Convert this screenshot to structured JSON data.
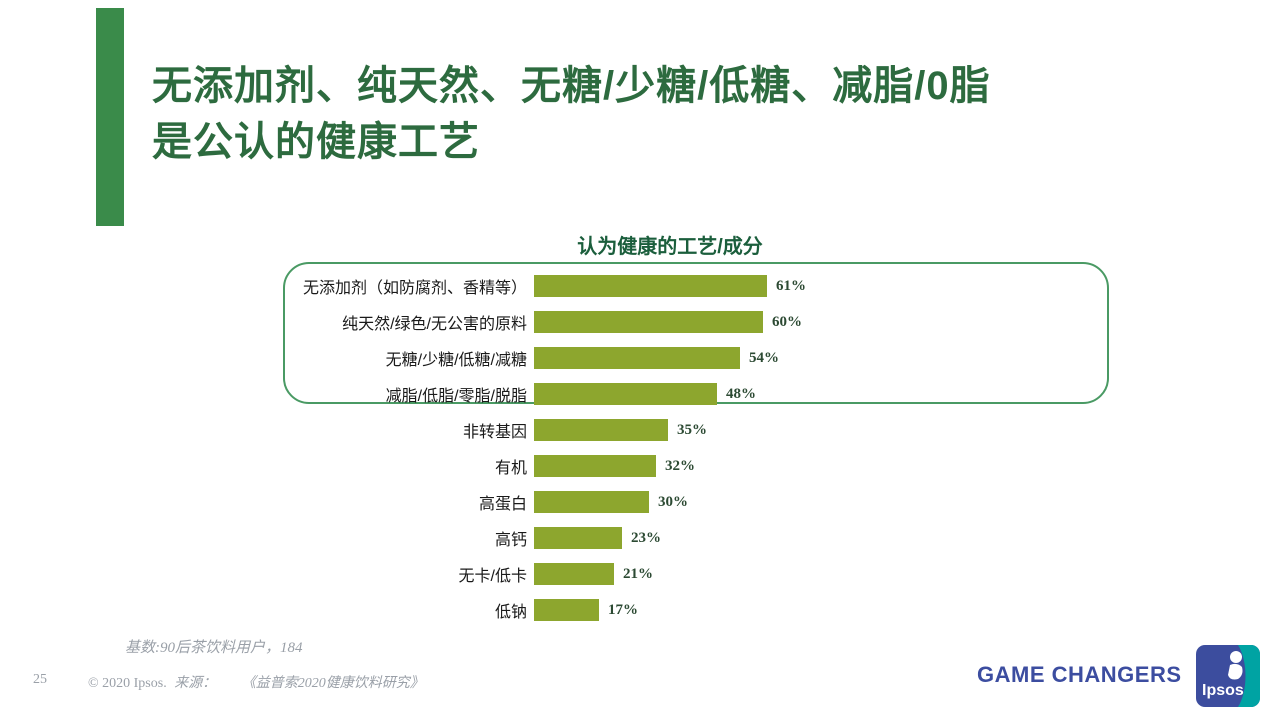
{
  "slide": {
    "title_lines": [
      "无添加剂、纯天然、无糖/少糖/低糖、减脂/0脂",
      "是公认的健康工艺"
    ],
    "accent_color": "#3a8b4a",
    "title_color": "#2d6b3f"
  },
  "chart_data": {
    "type": "bar",
    "orientation": "horizontal",
    "title": "认为健康的工艺/成分",
    "categories": [
      "无添加剂（如防腐剂、香精等）",
      "纯天然/绿色/无公害的原料",
      "无糖/少糖/低糖/减糖",
      "减脂/低脂/零脂/脱脂",
      "非转基因",
      "有机",
      "高蛋白",
      "高钙",
      "无卡/低卡",
      "低钠"
    ],
    "values": [
      61,
      60,
      54,
      48,
      35,
      32,
      30,
      23,
      21,
      17
    ],
    "value_suffix": "%",
    "xlim": [
      0,
      65
    ],
    "grid": false,
    "legend": false,
    "highlighted_top_rows": 4,
    "bar_color": "#8da62e",
    "frame_color": "#4a9a64",
    "title_color": "#1b5e3c",
    "value_label_color": "#2c4a33"
  },
  "footnote": "基数:90后茶饮料用户，184",
  "footer": {
    "page_number": "25",
    "copyright": "© 2020 Ipsos.",
    "source_label": "来源：",
    "source_title": "《益普索2020健康饮料研究》",
    "tagline": "GAME CHANGERS",
    "logo_text": "Ipsos",
    "brand_blue": "#3c4da0",
    "brand_teal": "#00a3a3"
  }
}
